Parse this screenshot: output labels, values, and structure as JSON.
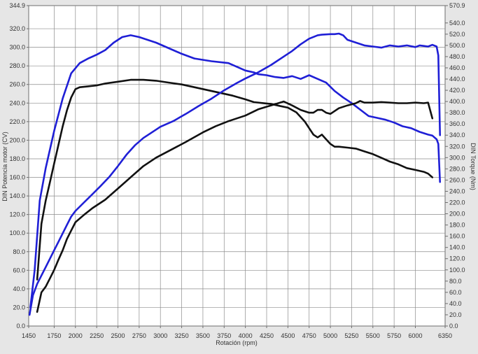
{
  "chart_data": {
    "type": "line",
    "title": "",
    "xlabel": "Rotación (rpm)",
    "ylabel_left": "DIN Potencia motor (CV)",
    "ylabel_right": "DIN Torque (Nm)",
    "x_range": [
      1450,
      6350
    ],
    "y_left_range": [
      0,
      344.9
    ],
    "y_right_range": [
      0,
      570.9
    ],
    "x_ticks": [
      "1450",
      "1750",
      "2000",
      "2250",
      "2500",
      "2750",
      "3000",
      "3250",
      "3500",
      "3750",
      "4000",
      "4250",
      "4500",
      "4750",
      "5000",
      "5250",
      "5500",
      "5750",
      "6000",
      "6350"
    ],
    "y_left_ticks": [
      "0.0",
      "20.0",
      "40.0",
      "60.0",
      "80.0",
      "100.0",
      "120.0",
      "140.0",
      "160.0",
      "180.0",
      "200.0",
      "220.0",
      "240.0",
      "260.0",
      "280.0",
      "300.0",
      "320.0",
      "344.9"
    ],
    "y_right_ticks": [
      "0.0",
      "20.0",
      "40.0",
      "60.0",
      "80.0",
      "100.0",
      "120.0",
      "140.0",
      "160.0",
      "180.0",
      "200.0",
      "220.0",
      "240.0",
      "260.0",
      "280.0",
      "300.0",
      "320.0",
      "340.0",
      "360.0",
      "380.0",
      "400.0",
      "420.0",
      "440.0",
      "460.0",
      "480.0",
      "500.0",
      "520.0",
      "540.0",
      "570.9"
    ],
    "grid": true,
    "series": [
      {
        "axis": "left",
        "color": "#1f1fd6",
        "x": [
          1470,
          1520,
          1580,
          1650,
          1750,
          1850,
          1950,
          2050,
          2150,
          2250,
          2350,
          2450,
          2550,
          2650,
          2750,
          2850,
          2950,
          3100,
          3250,
          3400,
          3600,
          3800,
          4000,
          4100,
          4150,
          4250,
          4350,
          4450,
          4550,
          4650,
          4750,
          4850,
          4950,
          5050,
          5150,
          5250,
          5350,
          5450,
          5550,
          5650,
          5750,
          5850,
          5950,
          6050,
          6150,
          6200,
          6250,
          6270,
          6290
        ],
        "values": [
          20,
          60,
          135,
          170,
          210,
          245,
          272,
          283,
          288,
          292,
          297,
          305,
          311,
          313,
          311,
          308,
          305,
          299,
          293,
          288,
          285,
          283,
          275,
          273,
          271,
          270,
          268,
          267,
          269,
          266,
          270,
          266,
          262,
          253,
          246,
          240,
          233,
          226,
          224,
          222,
          219,
          215,
          213,
          209,
          206,
          205,
          201,
          196,
          155
        ]
      },
      {
        "axis": "left",
        "color": "#111111",
        "x": [
          1550,
          1600,
          1650,
          1700,
          1750,
          1800,
          1850,
          1900,
          1950,
          2000,
          2050,
          2150,
          2250,
          2350,
          2500,
          2650,
          2800,
          2950,
          3100,
          3250,
          3400,
          3550,
          3700,
          3850,
          4000,
          4100,
          4200,
          4300,
          4400,
          4500,
          4600,
          4700,
          4750,
          4800,
          4850,
          4900,
          4950,
          5000,
          5050,
          5100,
          5200,
          5300,
          5400,
          5500,
          5600,
          5700,
          5800,
          5900,
          6000,
          6100,
          6150,
          6200
        ],
        "values": [
          50,
          110,
          135,
          155,
          175,
          195,
          215,
          232,
          246,
          255,
          257,
          258,
          259,
          261,
          263,
          265,
          265,
          264,
          262,
          260,
          257,
          254,
          251,
          248,
          244,
          241,
          240,
          239,
          237,
          235,
          230,
          220,
          213,
          206,
          203,
          206,
          201,
          196,
          193,
          193,
          192,
          191,
          188,
          185,
          181,
          177,
          174,
          170,
          168,
          166,
          164,
          160
        ]
      },
      {
        "axis": "right",
        "color": "#1f1fd6",
        "x": [
          1460,
          1500,
          1550,
          1600,
          1650,
          1700,
          1750,
          1800,
          1850,
          1900,
          1950,
          2000,
          2100,
          2200,
          2300,
          2400,
          2500,
          2600,
          2700,
          2800,
          2900,
          3000,
          3150,
          3300,
          3450,
          3600,
          3750,
          3900,
          4000,
          4150,
          4300,
          4450,
          4550,
          4650,
          4750,
          4850,
          4900,
          5000,
          5050,
          5100,
          5150,
          5200,
          5300,
          5400,
          5500,
          5600,
          5700,
          5800,
          5900,
          6000,
          6050,
          6100,
          6150,
          6200,
          6250,
          6270,
          6290
        ],
        "values": [
          20,
          55,
          75,
          90,
          105,
          120,
          135,
          150,
          165,
          180,
          195,
          205,
          220,
          235,
          250,
          266,
          285,
          305,
          322,
          335,
          345,
          355,
          365,
          378,
          392,
          405,
          420,
          433,
          441,
          452,
          465,
          480,
          490,
          502,
          512,
          518,
          519,
          520,
          520,
          521,
          518,
          510,
          505,
          500,
          498,
          496,
          500,
          498,
          500,
          497,
          500,
          499,
          498,
          501,
          498,
          482,
          340
        ]
      },
      {
        "axis": "right",
        "color": "#111111",
        "x": [
          1550,
          1600,
          1650,
          1700,
          1750,
          1800,
          1850,
          1900,
          1950,
          2000,
          2100,
          2200,
          2350,
          2500,
          2650,
          2800,
          2950,
          3100,
          3300,
          3500,
          3650,
          3800,
          4000,
          4150,
          4300,
          4450,
          4550,
          4650,
          4750,
          4800,
          4850,
          4900,
          4950,
          5000,
          5100,
          5200,
          5300,
          5350,
          5400,
          5500,
          5600,
          5700,
          5800,
          5900,
          6000,
          6100,
          6150,
          6200
        ],
        "values": [
          25,
          60,
          70,
          85,
          100,
          118,
          135,
          155,
          170,
          185,
          198,
          210,
          225,
          245,
          265,
          285,
          300,
          312,
          328,
          345,
          356,
          365,
          375,
          386,
          393,
          400,
          393,
          385,
          380,
          380,
          385,
          385,
          380,
          378,
          388,
          393,
          397,
          401,
          398,
          398,
          399,
          398,
          397,
          397,
          398,
          397,
          398,
          370
        ]
      }
    ]
  }
}
